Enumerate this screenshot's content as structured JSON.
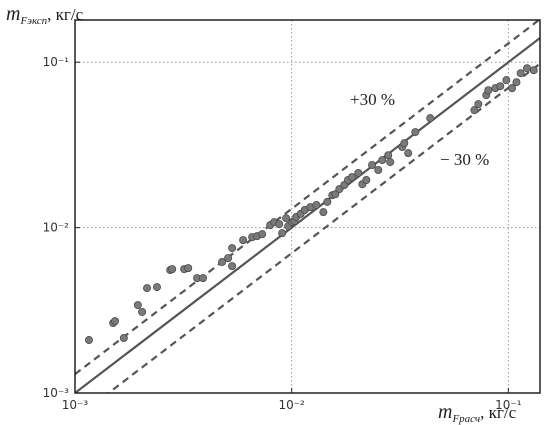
{
  "chart_data": {
    "type": "scatter",
    "xlabel": {
      "symbol": "m",
      "subscript": "Fрасч",
      "unit": ", кг/с"
    },
    "ylabel": {
      "symbol": "m",
      "subscript": "Fэксп",
      "unit": ", кг/с"
    },
    "xscale": "log",
    "yscale": "log",
    "xlim": [
      0.001,
      0.14
    ],
    "ylim": [
      0.001,
      0.18
    ],
    "xticks": [
      {
        "value": 0.001,
        "label": "10⁻³"
      },
      {
        "value": 0.01,
        "label": "10⁻²"
      },
      {
        "value": 0.1,
        "label": "10⁻¹"
      }
    ],
    "yticks": [
      {
        "value": 0.001,
        "label": "10⁻³"
      },
      {
        "value": 0.01,
        "label": "10⁻²"
      },
      {
        "value": 0.1,
        "label": "10⁻¹"
      }
    ],
    "grid": true,
    "color": "#7a7a7a",
    "reference_lines": [
      {
        "factor": 1,
        "style": "solid"
      },
      {
        "factor": 1.3,
        "style": "dashed"
      },
      {
        "factor": 0.7,
        "style": "dashed"
      }
    ],
    "annotations": [
      "+30 %",
      "− 30 %"
    ],
    "x": [
      0.00116,
      0.0015,
      0.00153,
      0.00168,
      0.00195,
      0.00204,
      0.00215,
      0.00239,
      0.00275,
      0.00281,
      0.00319,
      0.00333,
      0.00366,
      0.0039,
      0.00477,
      0.00509,
      0.00531,
      0.00531,
      0.00597,
      0.00657,
      0.00693,
      0.00731,
      0.00796,
      0.0083,
      0.00876,
      0.00904,
      0.00943,
      0.00963,
      0.01005,
      0.0103,
      0.0105,
      0.011,
      0.0115,
      0.0122,
      0.013,
      0.014,
      0.0146,
      0.0154,
      0.0159,
      0.0166,
      0.0175,
      0.0182,
      0.019,
      0.0203,
      0.0212,
      0.0221,
      0.0235,
      0.0251,
      0.0262,
      0.0279,
      0.0285,
      0.0324,
      0.0331,
      0.0345,
      0.0372,
      0.0436,
      0.0697,
      0.0727,
      0.0791,
      0.0808,
      0.0871,
      0.0918,
      0.0979,
      0.104,
      0.109,
      0.114,
      0.122,
      0.131
    ],
    "values": [
      0.00209,
      0.00265,
      0.00272,
      0.00215,
      0.0034,
      0.00309,
      0.00431,
      0.00437,
      0.00554,
      0.00561,
      0.00561,
      0.00569,
      0.00495,
      0.00495,
      0.00619,
      0.00654,
      0.00752,
      0.00585,
      0.0084,
      0.00876,
      0.00888,
      0.00913,
      0.01035,
      0.0108,
      0.0105,
      0.00926,
      0.0114,
      0.0102,
      0.0108,
      0.01095,
      0.0116,
      0.0121,
      0.0128,
      0.0133,
      0.0137,
      0.0124,
      0.0143,
      0.0157,
      0.0159,
      0.0171,
      0.0181,
      0.0194,
      0.0202,
      0.0214,
      0.0183,
      0.0194,
      0.0239,
      0.0223,
      0.0256,
      0.0274,
      0.0249,
      0.0307,
      0.0324,
      0.0282,
      0.0378,
      0.0459,
      0.0513,
      0.0558,
      0.0632,
      0.0677,
      0.0697,
      0.0716,
      0.0779,
      0.0697,
      0.0757,
      0.0858,
      0.092,
      0.0895
    ]
  }
}
